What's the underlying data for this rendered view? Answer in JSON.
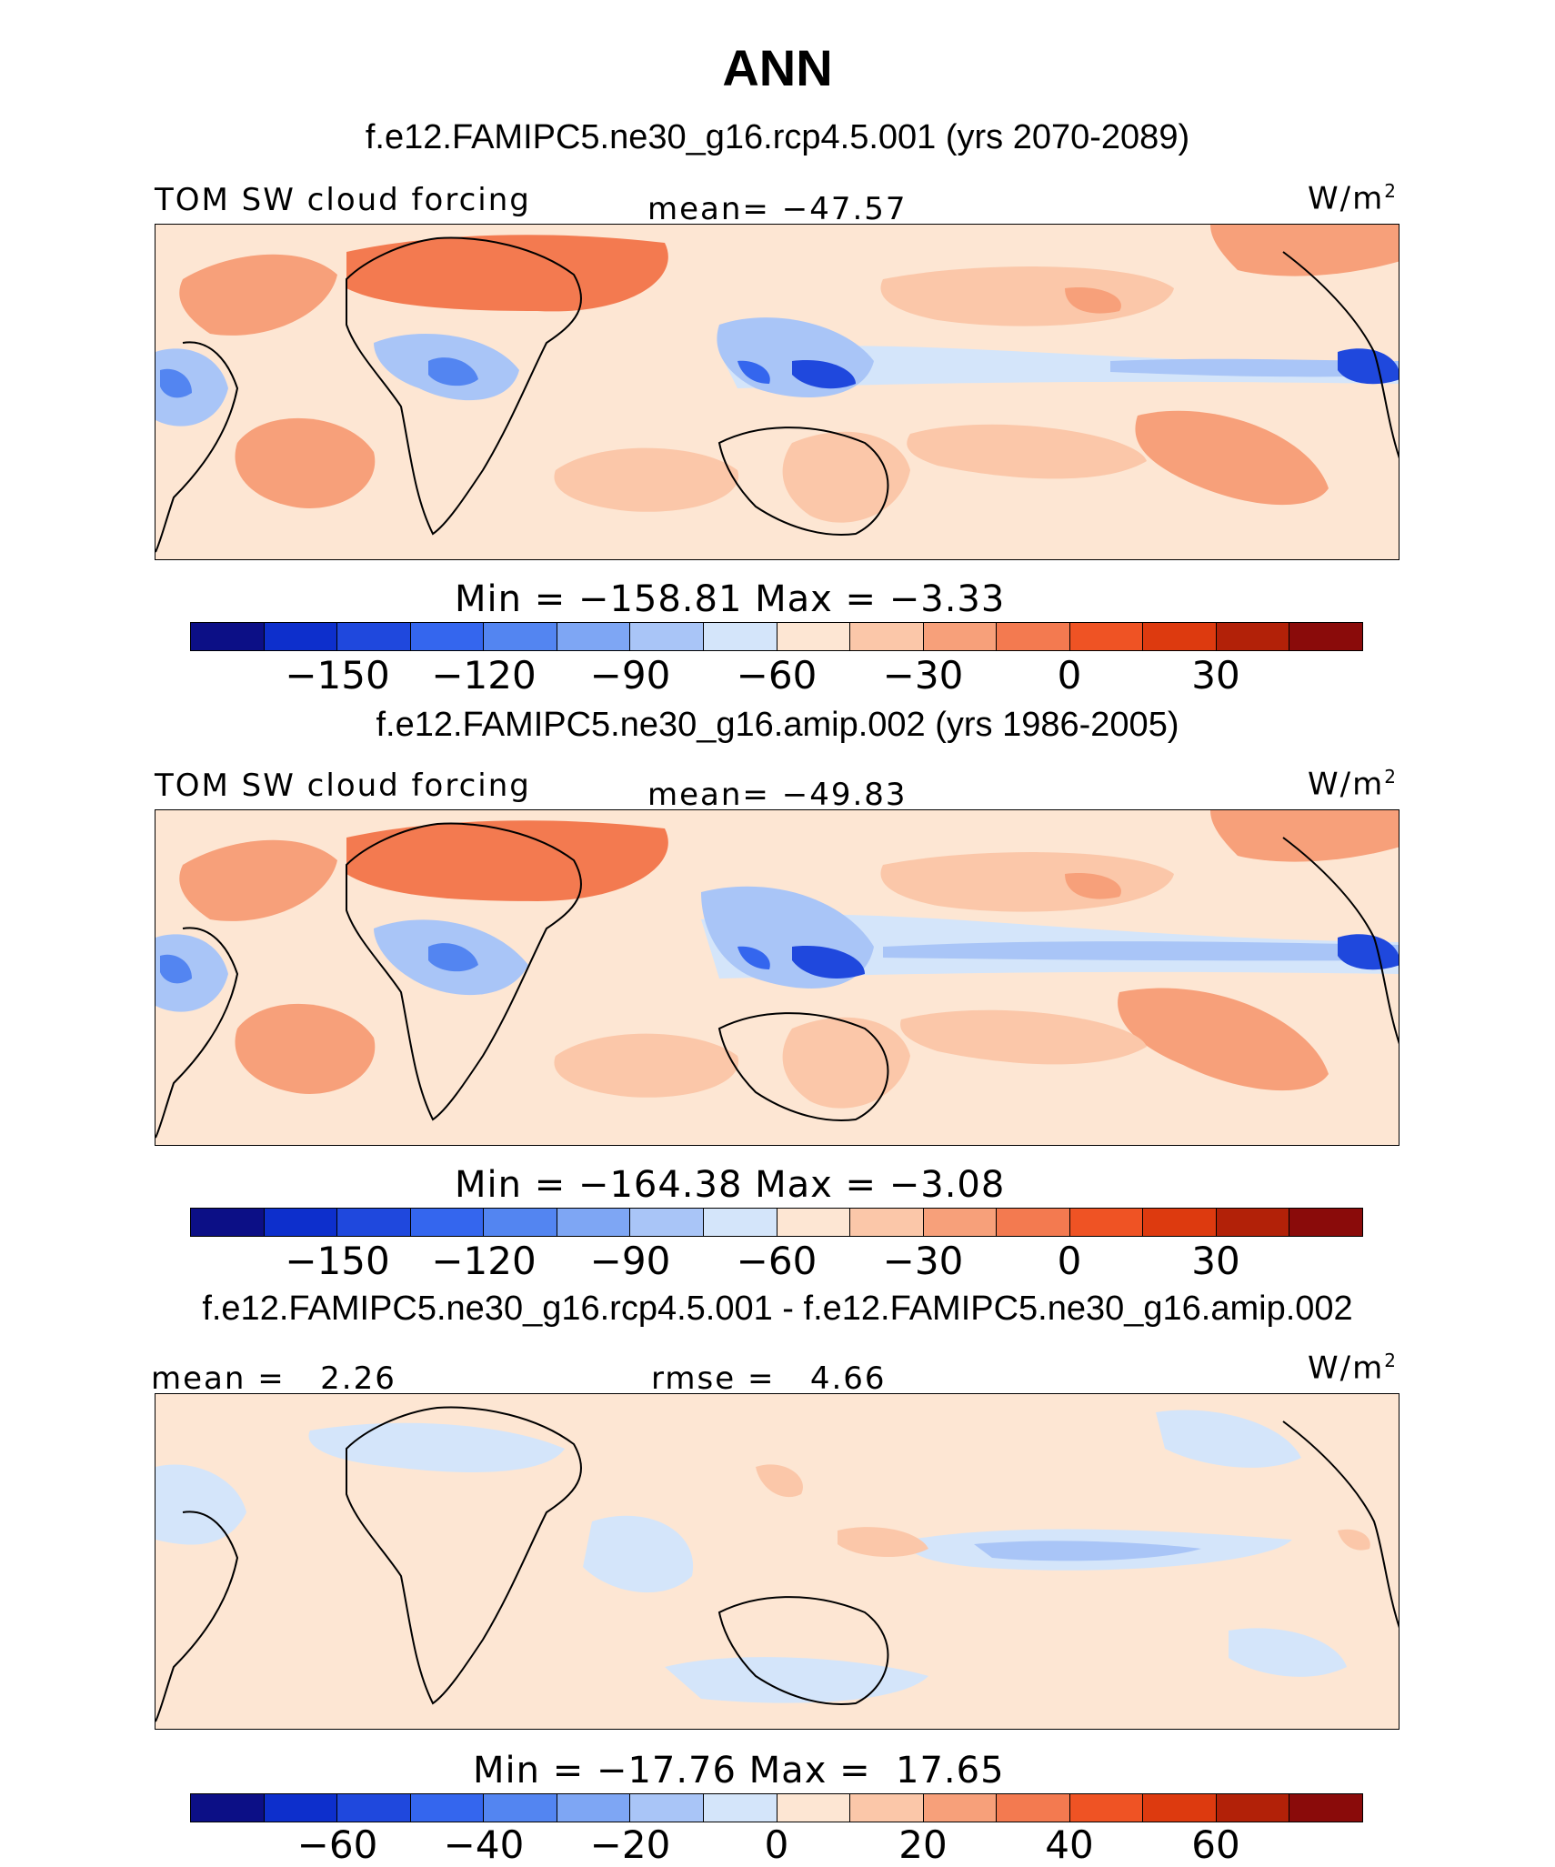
{
  "title": "ANN",
  "colors": [
    "#0c0f86",
    "#0d2fcc",
    "#1f48dd",
    "#3466ee",
    "#5385f1",
    "#7ea6f4",
    "#a9c5f7",
    "#d4e5fa",
    "#fde6d3",
    "#fbc7a9",
    "#f7a07a",
    "#f37a50",
    "#ef5324",
    "#dd3a0f",
    "#b22108",
    "#8a0b0a"
  ],
  "panels": [
    {
      "case": "f.e12.FAMIPC5.ne30_g16.rcp4.5.001 (yrs 2070-2089)",
      "left_label": "TOM SW cloud forcing",
      "center_label": "mean= −47.57",
      "units": "W/m",
      "units_exp": "2",
      "minmax": "Min = −158.81 Max = −3.33",
      "ticks": [
        "−150",
        "−120",
        "−90",
        "−60",
        "−30",
        "0",
        "30"
      ]
    },
    {
      "case": "f.e12.FAMIPC5.ne30_g16.amip.002 (yrs 1986-2005)",
      "left_label": "TOM SW cloud forcing",
      "center_label": "mean= −49.83",
      "units": "W/m",
      "units_exp": "2",
      "minmax": "Min = −164.38 Max = −3.08",
      "ticks": [
        "−150",
        "−120",
        "−90",
        "−60",
        "−30",
        "0",
        "30"
      ]
    },
    {
      "case": "f.e12.FAMIPC5.ne30_g16.rcp4.5.001 - f.e12.FAMIPC5.ne30_g16.amip.002",
      "left_label": "mean =   2.26",
      "center_label": "rmse =   4.66",
      "units": "W/m",
      "units_exp": "2",
      "minmax": "Min = −17.76 Max =  17.65",
      "ticks": [
        "−60",
        "−40",
        "−20",
        "0",
        "20",
        "40",
        "60"
      ]
    }
  ]
}
